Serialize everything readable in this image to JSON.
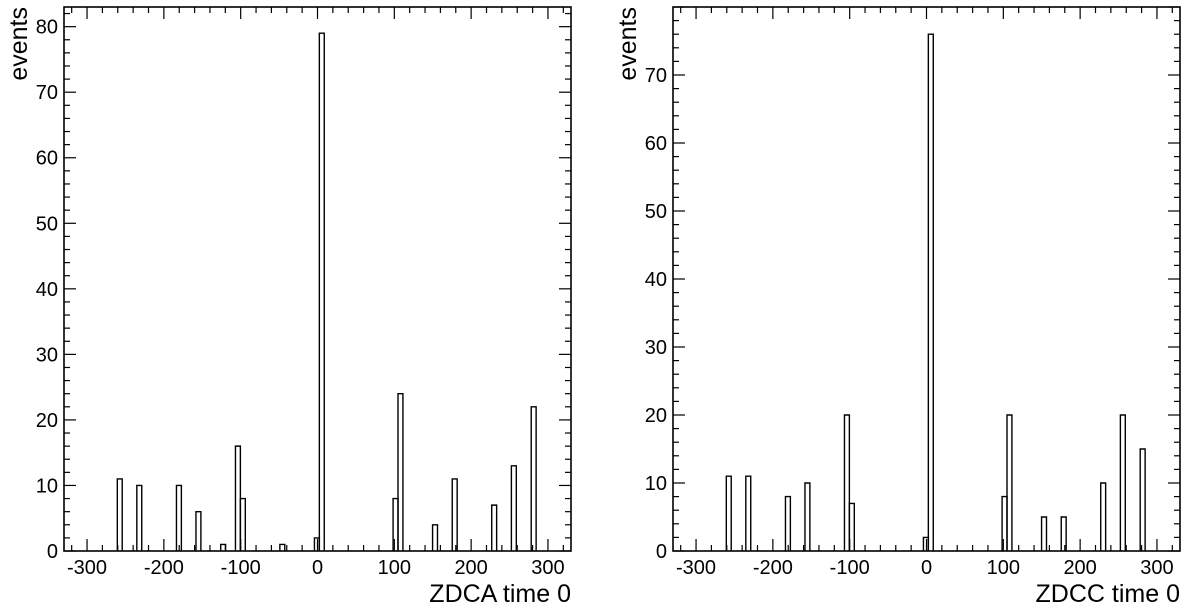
{
  "chart_data": [
    {
      "type": "bar",
      "histtype": "step",
      "xlabel": "ZDCA time 0",
      "ylabel": "events",
      "xlim": [
        -330,
        330
      ],
      "ylim": [
        0,
        83
      ],
      "xticks": [
        -300,
        -200,
        -100,
        0,
        100,
        200,
        300
      ],
      "xtick_labels": [
        "-300",
        "-200",
        "-100",
        "0",
        "100",
        "200",
        "300"
      ],
      "yticks": [
        0,
        10,
        20,
        30,
        40,
        50,
        60,
        70,
        80
      ],
      "ytick_labels": [
        "0",
        "10",
        "20",
        "30",
        "40",
        "50",
        "60",
        "70",
        "80"
      ],
      "bin_width": 6.4,
      "bins": [
        {
          "x": -257.4,
          "value": 11
        },
        {
          "x": -232.0,
          "value": 10
        },
        {
          "x": -180.4,
          "value": 10
        },
        {
          "x": -155.0,
          "value": 6
        },
        {
          "x": -122.8,
          "value": 1
        },
        {
          "x": -103.6,
          "value": 16
        },
        {
          "x": -97.2,
          "value": 8
        },
        {
          "x": -45.8,
          "value": 1
        },
        {
          "x": -0.8,
          "value": 2
        },
        {
          "x": 5.6,
          "value": 79
        },
        {
          "x": 101.6,
          "value": 8
        },
        {
          "x": 108.0,
          "value": 24
        },
        {
          "x": 153.0,
          "value": 4
        },
        {
          "x": 178.6,
          "value": 11
        },
        {
          "x": 230.0,
          "value": 7
        },
        {
          "x": 255.6,
          "value": 13
        },
        {
          "x": 281.4,
          "value": 22
        }
      ]
    },
    {
      "type": "bar",
      "histtype": "step",
      "xlabel": "ZDCC time 0",
      "ylabel": "events",
      "xlim": [
        -330,
        330
      ],
      "ylim": [
        0,
        80
      ],
      "xticks": [
        -300,
        -200,
        -100,
        0,
        100,
        200,
        300
      ],
      "xtick_labels": [
        "-300",
        "-200",
        "-100",
        "0",
        "100",
        "200",
        "300"
      ],
      "yticks": [
        0,
        10,
        20,
        30,
        40,
        50,
        60,
        70
      ],
      "ytick_labels": [
        "0",
        "10",
        "20",
        "30",
        "40",
        "50",
        "60",
        "70"
      ],
      "bin_width": 6.4,
      "bins": [
        {
          "x": -257.4,
          "value": 11
        },
        {
          "x": -232.0,
          "value": 11
        },
        {
          "x": -180.4,
          "value": 8
        },
        {
          "x": -155.0,
          "value": 10
        },
        {
          "x": -103.6,
          "value": 20
        },
        {
          "x": -97.2,
          "value": 7
        },
        {
          "x": -0.8,
          "value": 2
        },
        {
          "x": 5.6,
          "value": 76
        },
        {
          "x": 101.6,
          "value": 8
        },
        {
          "x": 108.0,
          "value": 20
        },
        {
          "x": 153.0,
          "value": 5
        },
        {
          "x": 178.6,
          "value": 5
        },
        {
          "x": 230.0,
          "value": 10
        },
        {
          "x": 255.6,
          "value": 20
        },
        {
          "x": 281.4,
          "value": 15
        }
      ]
    }
  ]
}
